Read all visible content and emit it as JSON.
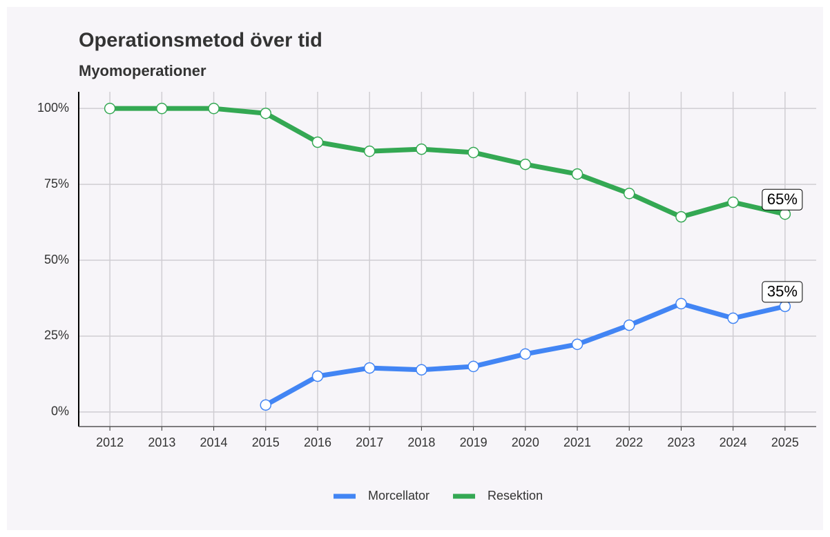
{
  "chart_data": {
    "type": "line",
    "title": "Operationsmetod över tid",
    "subtitle": "Myomoperationer",
    "x": [
      2012,
      2013,
      2014,
      2015,
      2016,
      2017,
      2018,
      2019,
      2020,
      2021,
      2022,
      2023,
      2024,
      2025
    ],
    "xlim": [
      2011.4,
      2025.6
    ],
    "xticks": [
      2012,
      2013,
      2014,
      2015,
      2016,
      2017,
      2018,
      2019,
      2020,
      2021,
      2022,
      2023,
      2024,
      2025
    ],
    "ylim": [
      -4.8,
      105.5
    ],
    "yticks": [
      {
        "value": 0,
        "label": "0%"
      },
      {
        "value": 25,
        "label": "25%"
      },
      {
        "value": 50,
        "label": "50%"
      },
      {
        "value": 75,
        "label": "75%"
      },
      {
        "value": 100,
        "label": "100%"
      }
    ],
    "grid": true,
    "legend": "bottom",
    "series": [
      {
        "name": "Morcellator",
        "color": "#4285f4",
        "values": [
          null,
          null,
          null,
          2.3,
          11.8,
          14.5,
          13.9,
          15,
          19.1,
          22.3,
          28.6,
          35.7,
          30.9,
          34.8
        ],
        "value_labels": [
          null,
          null,
          null,
          null,
          null,
          null,
          null,
          null,
          null,
          null,
          null,
          null,
          null,
          "35%"
        ]
      },
      {
        "name": "Resektion",
        "color": "#34a853",
        "values": [
          100,
          100,
          100,
          98.4,
          88.9,
          85.9,
          86.6,
          85.5,
          81.6,
          78.4,
          72,
          64.3,
          69.1,
          65.2
        ],
        "value_labels": [
          null,
          null,
          null,
          null,
          null,
          null,
          null,
          null,
          null,
          null,
          null,
          null,
          null,
          "65%"
        ]
      }
    ]
  }
}
